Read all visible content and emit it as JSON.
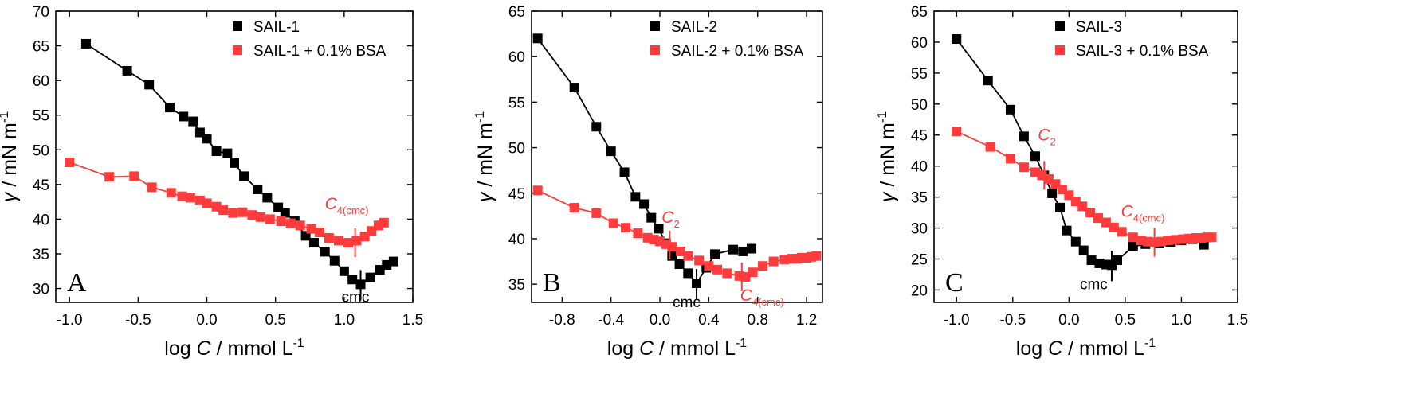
{
  "chart_data": [
    {
      "type": "line",
      "panel_label": "A",
      "xlabel_pre": "log ",
      "xlabel_var": "C",
      "xlabel_post": " / mmol L",
      "xlabel_sup": "-1",
      "ylabel_var": "γ",
      "ylabel_post": " / mN m",
      "ylabel_sup": "-1",
      "xlim": [
        -1.1,
        1.5
      ],
      "ylim": [
        28,
        70
      ],
      "xticks": [
        -1.0,
        -0.5,
        0.0,
        0.5,
        1.0,
        1.5
      ],
      "xtick_labels": [
        "-1.0",
        "-0.5",
        "0.0",
        "0.5",
        "1.0",
        "1.5"
      ],
      "yticks": [
        30,
        35,
        40,
        45,
        50,
        55,
        60,
        65,
        70
      ],
      "ytick_labels": [
        "30",
        "35",
        "40",
        "45",
        "50",
        "55",
        "60",
        "65",
        "70"
      ],
      "legend_position": "top-right",
      "series": [
        {
          "name": "SAIL-1",
          "color": "#000000",
          "x": [
            -0.88,
            -0.58,
            -0.42,
            -0.27,
            -0.17,
            -0.1,
            -0.05,
            0.0,
            0.07,
            0.15,
            0.2,
            0.27,
            0.37,
            0.44,
            0.52,
            0.57,
            0.64,
            0.72,
            0.78,
            0.86,
            0.93,
            1.0,
            1.06,
            1.12,
            1.19,
            1.26,
            1.31,
            1.36
          ],
          "y": [
            65.3,
            61.4,
            59.4,
            56.1,
            54.8,
            54.1,
            52.5,
            51.6,
            49.8,
            49.5,
            48.1,
            46.2,
            44.3,
            43.1,
            41.7,
            40.9,
            39.7,
            37.6,
            36.6,
            35.3,
            34.0,
            32.5,
            31.3,
            30.6,
            31.6,
            32.7,
            33.4,
            33.9
          ]
        },
        {
          "name": "SAIL-1 + 0.1% BSA",
          "color": "#ff3b3b",
          "x": [
            -1.0,
            -0.71,
            -0.53,
            -0.4,
            -0.26,
            -0.18,
            -0.12,
            -0.05,
            0.0,
            0.07,
            0.12,
            0.19,
            0.26,
            0.33,
            0.39,
            0.46,
            0.54,
            0.61,
            0.68,
            0.76,
            0.82,
            0.89,
            0.96,
            1.03,
            1.09,
            1.15,
            1.2,
            1.25,
            1.29
          ],
          "y": [
            48.2,
            46.1,
            46.2,
            44.6,
            43.8,
            43.3,
            43.1,
            42.7,
            42.3,
            41.8,
            41.3,
            40.9,
            41.0,
            40.6,
            40.3,
            40.0,
            39.7,
            39.4,
            39.1,
            38.6,
            38.1,
            37.3,
            36.9,
            36.6,
            36.9,
            37.5,
            38.3,
            39.1,
            39.5
          ]
        }
      ],
      "annotations": [
        {
          "text": "cmc",
          "x": 1.12,
          "y": 30.6,
          "color": "#000000"
        },
        {
          "text": "C",
          "sub": "4(cmc)",
          "x": 1.08,
          "y": 36.6,
          "color": "#ff3b3b"
        }
      ]
    },
    {
      "type": "line",
      "panel_label": "B",
      "xlabel_pre": "log ",
      "xlabel_var": "C",
      "xlabel_post": " / mmol L",
      "xlabel_sup": "-1",
      "ylabel_var": "γ",
      "ylabel_post": " / mN m",
      "ylabel_sup": "-1",
      "xlim": [
        -1.05,
        1.33
      ],
      "ylim": [
        33,
        65
      ],
      "xticks": [
        -0.8,
        -0.4,
        0.0,
        0.4,
        0.8,
        1.2
      ],
      "xtick_labels": [
        "-0.8",
        "-0.4",
        "0.0",
        "0.4",
        "0.8",
        "1.2"
      ],
      "yticks": [
        35,
        40,
        45,
        50,
        55,
        60,
        65
      ],
      "ytick_labels": [
        "35",
        "40",
        "45",
        "50",
        "55",
        "60",
        "65"
      ],
      "legend_position": "top-right",
      "series": [
        {
          "name": "SAIL-2",
          "color": "#000000",
          "x": [
            -1.0,
            -0.7,
            -0.52,
            -0.4,
            -0.29,
            -0.2,
            -0.13,
            -0.07,
            -0.01,
            0.05,
            0.1,
            0.16,
            0.23,
            0.3,
            0.38,
            0.45,
            0.6,
            0.68,
            0.75
          ],
          "y": [
            62.0,
            56.6,
            52.3,
            49.6,
            47.3,
            44.6,
            43.8,
            42.3,
            41.1,
            39.5,
            38.1,
            37.2,
            36.2,
            35.1,
            36.8,
            38.3,
            38.8,
            38.6,
            38.9
          ],
          "segments": [
            [
              0,
              13
            ],
            [
              13,
              15
            ],
            [
              15,
              18
            ]
          ]
        },
        {
          "name": "SAIL-2 + 0.1% BSA",
          "color": "#ff3b3b",
          "x": [
            -1.0,
            -0.7,
            -0.52,
            -0.38,
            -0.28,
            -0.18,
            -0.1,
            -0.05,
            0.0,
            0.05,
            0.1,
            0.17,
            0.23,
            0.32,
            0.4,
            0.47,
            0.55,
            0.65,
            0.7,
            0.76,
            0.84,
            0.93,
            1.02,
            1.08,
            1.12,
            1.16,
            1.2,
            1.24,
            1.28
          ],
          "y": [
            45.3,
            43.4,
            42.8,
            41.7,
            41.2,
            40.6,
            40.1,
            39.9,
            39.7,
            39.4,
            39.1,
            38.6,
            38.1,
            37.6,
            37.0,
            36.6,
            36.2,
            35.9,
            35.8,
            36.3,
            37.0,
            37.5,
            37.7,
            37.8,
            37.8,
            37.9,
            37.9,
            38.0,
            38.1
          ]
        }
      ],
      "annotations": [
        {
          "text": "cmc",
          "x": 0.3,
          "y": 35.1,
          "color": "#000000"
        },
        {
          "text": "C",
          "sub": "2",
          "x": 0.08,
          "y": 39.3,
          "color": "#ff3b3b"
        },
        {
          "text": "C",
          "sub": "4(cmc)",
          "x": 0.67,
          "y": 35.8,
          "color": "#ff3b3b"
        }
      ]
    },
    {
      "type": "line",
      "panel_label": "C",
      "xlabel_pre": "log ",
      "xlabel_var": "C",
      "xlabel_post": " / mmol L",
      "xlabel_sup": "-1",
      "ylabel_var": "γ",
      "ylabel_post": " / mN m",
      "ylabel_sup": "-1",
      "xlim": [
        -1.2,
        1.5
      ],
      "ylim": [
        18,
        65
      ],
      "xticks": [
        -1.0,
        -0.5,
        0.0,
        0.5,
        1.0,
        1.5
      ],
      "xtick_labels": [
        "-1.0",
        "-0.5",
        "0.0",
        "0.5",
        "1.0",
        "1.5"
      ],
      "yticks": [
        20,
        25,
        30,
        35,
        40,
        45,
        50,
        55,
        60,
        65
      ],
      "ytick_labels": [
        "20",
        "25",
        "30",
        "35",
        "40",
        "45",
        "50",
        "55",
        "60",
        "65"
      ],
      "legend_position": "top-right",
      "series": [
        {
          "name": "SAIL-3",
          "color": "#000000",
          "x": [
            -1.0,
            -0.72,
            -0.52,
            -0.4,
            -0.3,
            -0.22,
            -0.15,
            -0.08,
            -0.02,
            0.06,
            0.13,
            0.2,
            0.27,
            0.33,
            0.38,
            0.43,
            0.57,
            0.68,
            0.8,
            0.9,
            1.0,
            1.1,
            1.2
          ],
          "y": [
            60.5,
            53.8,
            49.1,
            44.8,
            41.6,
            38.5,
            35.6,
            33.3,
            29.6,
            27.8,
            26.4,
            24.8,
            24.3,
            24.1,
            24.0,
            24.8,
            27.0,
            27.4,
            27.5,
            27.7,
            28.0,
            28.2,
            27.3
          ]
        },
        {
          "name": "SAIL-3 + 0.1% BSA",
          "color": "#ff3b3b",
          "x": [
            -1.0,
            -0.7,
            -0.52,
            -0.4,
            -0.3,
            -0.24,
            -0.18,
            -0.12,
            -0.06,
            0.0,
            0.06,
            0.12,
            0.19,
            0.26,
            0.33,
            0.4,
            0.47,
            0.57,
            0.64,
            0.7,
            0.76,
            0.82,
            0.88,
            0.95,
            1.01,
            1.07,
            1.13,
            1.18,
            1.23,
            1.27
          ],
          "y": [
            45.6,
            43.1,
            41.2,
            39.8,
            39.0,
            38.5,
            37.9,
            37.1,
            36.2,
            35.3,
            34.3,
            33.5,
            32.5,
            31.6,
            30.9,
            30.1,
            29.4,
            28.5,
            28.0,
            27.8,
            27.7,
            27.8,
            28.0,
            28.1,
            28.2,
            28.3,
            28.4,
            28.4,
            28.5,
            28.5
          ]
        }
      ],
      "annotations": [
        {
          "text": "cmc",
          "x": 0.38,
          "y": 24.0,
          "color": "#000000"
        },
        {
          "text": "C",
          "sub": "2",
          "x": -0.22,
          "y": 38.5,
          "color": "#ff3b3b"
        },
        {
          "text": "C",
          "sub": "4(cmc)",
          "x": 0.76,
          "y": 27.7,
          "color": "#ff3b3b"
        }
      ]
    }
  ]
}
